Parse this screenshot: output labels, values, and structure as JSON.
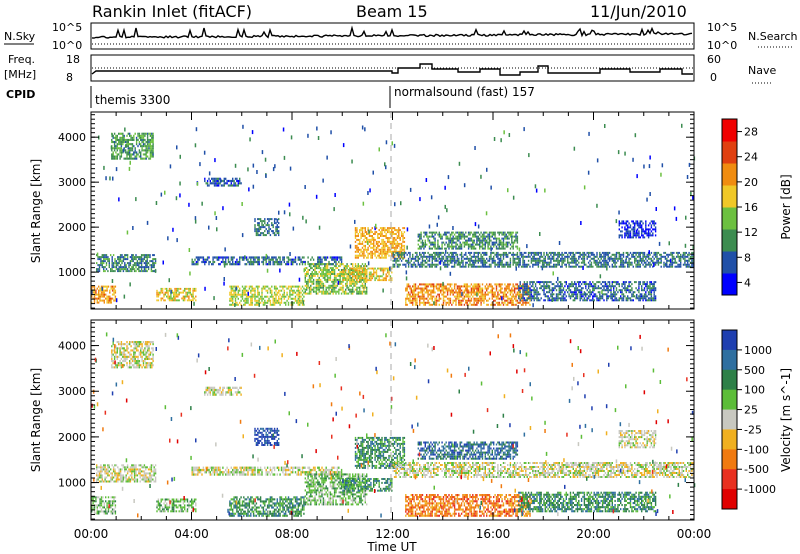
{
  "header": {
    "station": "Rankin Inlet (fitACF)",
    "beam": "Beam 15",
    "date": "11/Jun/2010"
  },
  "top_strips": {
    "nsky_label": "N.Sky",
    "nsky_ticks": [
      "10^5",
      "10^0"
    ],
    "nsearch_label": "N.Search",
    "nsearch_ticks": [
      "10^5",
      "10^0"
    ],
    "freq_label_1": "Freq.",
    "freq_label_2": "[MHz]",
    "freq_ticks": [
      "18",
      "8"
    ],
    "nave_label": "Nave",
    "nave_ticks": [
      "60",
      "0"
    ],
    "cpid_label": "CPID",
    "cpid_modes": [
      "themis 3300",
      "normalsound (fast) 157"
    ]
  },
  "colors": {
    "power_scale": [
      "#0000ff",
      "#2050a8",
      "#3c8c50",
      "#6cc040",
      "#f0c828",
      "#f08c10",
      "#e04010",
      "#f00000"
    ],
    "velocity_scale": [
      "#1f3fb0",
      "#2f6fa0",
      "#2e8048",
      "#5cbd38",
      "#c8c8c0",
      "#f0b020",
      "#f07a10",
      "#e83020",
      "#e00000"
    ]
  },
  "chart_data": [
    {
      "type": "heatmap",
      "name_note": "Power panel",
      "xlabel": "",
      "ylabel": "Slant Range [km]",
      "xlim": [
        0,
        24
      ],
      "ylim": [
        180,
        4560
      ],
      "x_ticks": [
        "00:00",
        "04:00",
        "08:00",
        "12:00",
        "16:00",
        "20:00",
        "00:00"
      ],
      "y_ticks": [
        1000,
        2000,
        3000,
        4000
      ],
      "colorbar_label": "Power [dB]",
      "colorbar_ticks": [
        4,
        8,
        12,
        16,
        20,
        24,
        28
      ],
      "colorbar_range": [
        2,
        30
      ],
      "echo_regions": [
        {
          "t0": 0.8,
          "t1": 2.5,
          "r0": 3500,
          "r1": 4100,
          "level": 13
        },
        {
          "t0": 0.0,
          "t1": 1.0,
          "r0": 300,
          "r1": 700,
          "level": 23
        },
        {
          "t0": 0.2,
          "t1": 2.6,
          "r0": 1000,
          "r1": 1400,
          "level": 11
        },
        {
          "t0": 2.6,
          "t1": 4.2,
          "r0": 350,
          "r1": 650,
          "level": 20
        },
        {
          "t0": 4.0,
          "t1": 10.0,
          "r0": 1150,
          "r1": 1350,
          "level": 9
        },
        {
          "t0": 5.5,
          "t1": 8.5,
          "r0": 250,
          "r1": 700,
          "level": 18
        },
        {
          "t0": 8.5,
          "t1": 11.0,
          "r0": 500,
          "r1": 1200,
          "level": 16
        },
        {
          "t0": 10.5,
          "t1": 12.5,
          "r0": 1300,
          "r1": 2000,
          "level": 22
        },
        {
          "t0": 10.0,
          "t1": 12.0,
          "r0": 800,
          "r1": 1100,
          "level": 20
        },
        {
          "t0": 12.5,
          "t1": 17.5,
          "r0": 250,
          "r1": 750,
          "level": 24
        },
        {
          "t0": 12.0,
          "t1": 24.0,
          "r0": 1100,
          "r1": 1450,
          "level": 10
        },
        {
          "t0": 13.0,
          "t1": 17.0,
          "r0": 1500,
          "r1": 1900,
          "level": 12
        },
        {
          "t0": 17.0,
          "t1": 22.5,
          "r0": 350,
          "r1": 800,
          "level": 9
        },
        {
          "t0": 21.0,
          "t1": 22.5,
          "r0": 1750,
          "r1": 2150,
          "level": 6
        },
        {
          "t0": 6.5,
          "t1": 7.5,
          "r0": 1800,
          "r1": 2200,
          "level": 10
        },
        {
          "t0": 4.5,
          "t1": 6.0,
          "r0": 2900,
          "r1": 3100,
          "level": 8
        }
      ]
    },
    {
      "type": "heatmap",
      "name_note": "Velocity panel",
      "xlabel": "Time UT",
      "ylabel": "Slant Range [km]",
      "xlim": [
        0,
        24
      ],
      "ylim": [
        180,
        4560
      ],
      "x_ticks": [
        "00:00",
        "04:00",
        "08:00",
        "12:00",
        "16:00",
        "20:00",
        "00:00"
      ],
      "y_ticks": [
        1000,
        2000,
        3000,
        4000
      ],
      "colorbar_label": "Velocity [m s^-1]",
      "colorbar_ticks": [
        "1000",
        "500",
        "100",
        "25",
        "-25",
        "-100",
        "-500",
        "-1000"
      ],
      "echo_regions": [
        {
          "t0": 0.8,
          "t1": 2.5,
          "r0": 3500,
          "r1": 4100,
          "vclass": 4
        },
        {
          "t0": 0.0,
          "t1": 1.0,
          "r0": 300,
          "r1": 700,
          "vclass": 3
        },
        {
          "t0": 0.2,
          "t1": 2.6,
          "r0": 1000,
          "r1": 1400,
          "vclass": 4
        },
        {
          "t0": 2.6,
          "t1": 4.2,
          "r0": 350,
          "r1": 650,
          "vclass": 3
        },
        {
          "t0": 4.0,
          "t1": 10.0,
          "r0": 1150,
          "r1": 1350,
          "vclass": 4
        },
        {
          "t0": 5.5,
          "t1": 8.5,
          "r0": 250,
          "r1": 700,
          "vclass": 2
        },
        {
          "t0": 8.5,
          "t1": 11.0,
          "r0": 500,
          "r1": 1200,
          "vclass": 3
        },
        {
          "t0": 10.5,
          "t1": 12.5,
          "r0": 1300,
          "r1": 2000,
          "vclass": 2
        },
        {
          "t0": 10.0,
          "t1": 12.0,
          "r0": 800,
          "r1": 1100,
          "vclass": 2
        },
        {
          "t0": 12.5,
          "t1": 17.5,
          "r0": 250,
          "r1": 750,
          "vclass": 6
        },
        {
          "t0": 12.0,
          "t1": 24.0,
          "r0": 1100,
          "r1": 1450,
          "vclass": 4
        },
        {
          "t0": 13.0,
          "t1": 17.0,
          "r0": 1500,
          "r1": 1900,
          "vclass": 1
        },
        {
          "t0": 17.0,
          "t1": 22.5,
          "r0": 350,
          "r1": 800,
          "vclass": 2
        },
        {
          "t0": 21.0,
          "t1": 22.5,
          "r0": 1750,
          "r1": 2150,
          "vclass": 4
        },
        {
          "t0": 6.5,
          "t1": 7.5,
          "r0": 1800,
          "r1": 2200,
          "vclass": 0
        },
        {
          "t0": 4.5,
          "t1": 6.0,
          "r0": 2900,
          "r1": 3100,
          "vclass": 4
        }
      ]
    }
  ]
}
